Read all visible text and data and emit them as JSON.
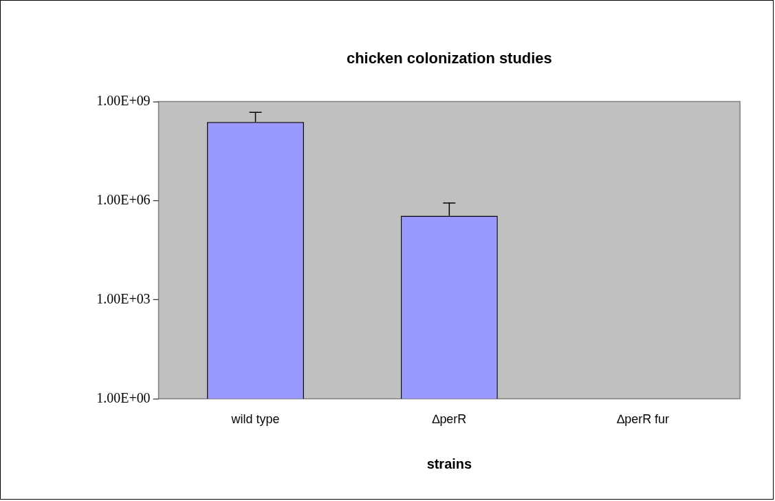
{
  "chart_data": {
    "type": "bar",
    "title": "chicken colonization studies",
    "xlabel": "strains",
    "categories": [
      "wild type",
      "∆perR",
      "∆perR fur"
    ],
    "values": [
      240000000,
      350000,
      1
    ],
    "errors": [
      [
        240000000,
        470000000
      ],
      [
        350000,
        850000
      ],
      null
    ],
    "color": "#9999ff",
    "log": "y",
    "ylim": [
      1,
      1000000000
    ],
    "yticks": [
      {
        "value": 1,
        "label": "1.00E+00"
      },
      {
        "value": 1000,
        "label": "1.00E+03"
      },
      {
        "value": 1000000,
        "label": "1.00E+06"
      },
      {
        "value": 1000000000,
        "label": "1.00E+09"
      }
    ],
    "grid": false,
    "legend": false
  }
}
